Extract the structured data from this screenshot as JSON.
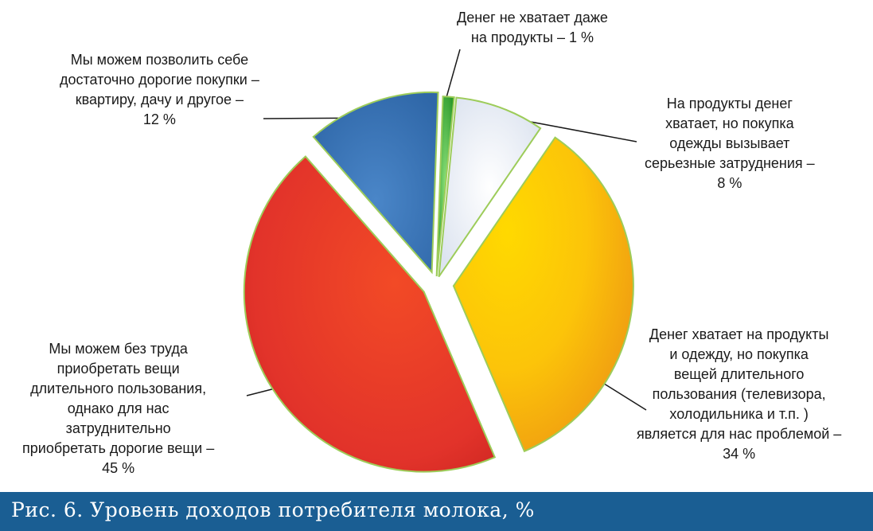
{
  "chart_data": {
    "type": "pie",
    "title": "",
    "slices": [
      {
        "label_lines": [
          "Денег не хватает даже",
          "на продукты – 1 %"
        ],
        "value": 1,
        "color": "#3fae3a"
      },
      {
        "label_lines": [
          "На продукты денег",
          "хватает, но покупка",
          "одежды вызывает",
          "серьезные затруднения –",
          "8 %"
        ],
        "value": 8,
        "color": "#e6ebf4"
      },
      {
        "label_lines": [
          "Денег хватает на продукты",
          "и одежду, но покупка",
          "вещей длительного",
          "пользования (телевизора,",
          "холодильника и т.п. )",
          "является для нас проблемой –",
          "34 %"
        ],
        "value": 34,
        "color": "#f7b40c"
      },
      {
        "label_lines": [
          "Мы можем без труда",
          "приобретать вещи",
          "длительного пользования,",
          "однако для нас",
          "затруднительно",
          "приобретать дорогие вещи –",
          "45 %"
        ],
        "value": 45,
        "color": "#e2332a"
      },
      {
        "label_lines": [
          "Мы можем позволить себе",
          "достаточно дорогие покупки –",
          "квартиру, дачу и другое –",
          "12 %"
        ],
        "value": 12,
        "color": "#3a75b8"
      }
    ],
    "legend": "none"
  },
  "caption": "Рис. 6. Уровень доходов потребителя молока, %"
}
